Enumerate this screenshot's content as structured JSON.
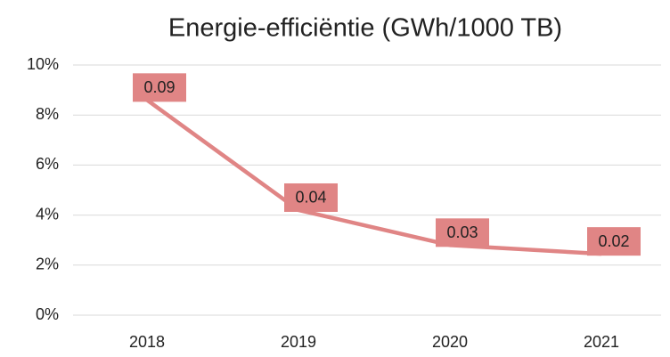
{
  "chart_data": {
    "type": "line",
    "title": "Energie-efficiëntie (GWh/1000 TB)",
    "categories": [
      "2018",
      "2019",
      "2020",
      "2021"
    ],
    "series": [
      {
        "name": "Energie-efficiëntie",
        "color": "#e08585",
        "values": [
          8.6,
          4.2,
          2.8,
          2.45
        ],
        "value_labels": [
          "0.09",
          "0.04",
          "0.03",
          "0.02"
        ]
      }
    ],
    "ylim": [
      0,
      10
    ],
    "yticks": [
      {
        "value": 0,
        "label": "0%"
      },
      {
        "value": 2,
        "label": "2%"
      },
      {
        "value": 4,
        "label": "4%"
      },
      {
        "value": 6,
        "label": "6%"
      },
      {
        "value": 8,
        "label": "8%"
      },
      {
        "value": 10,
        "label": "10%"
      }
    ],
    "grid": true,
    "label_color": "#e08585"
  }
}
